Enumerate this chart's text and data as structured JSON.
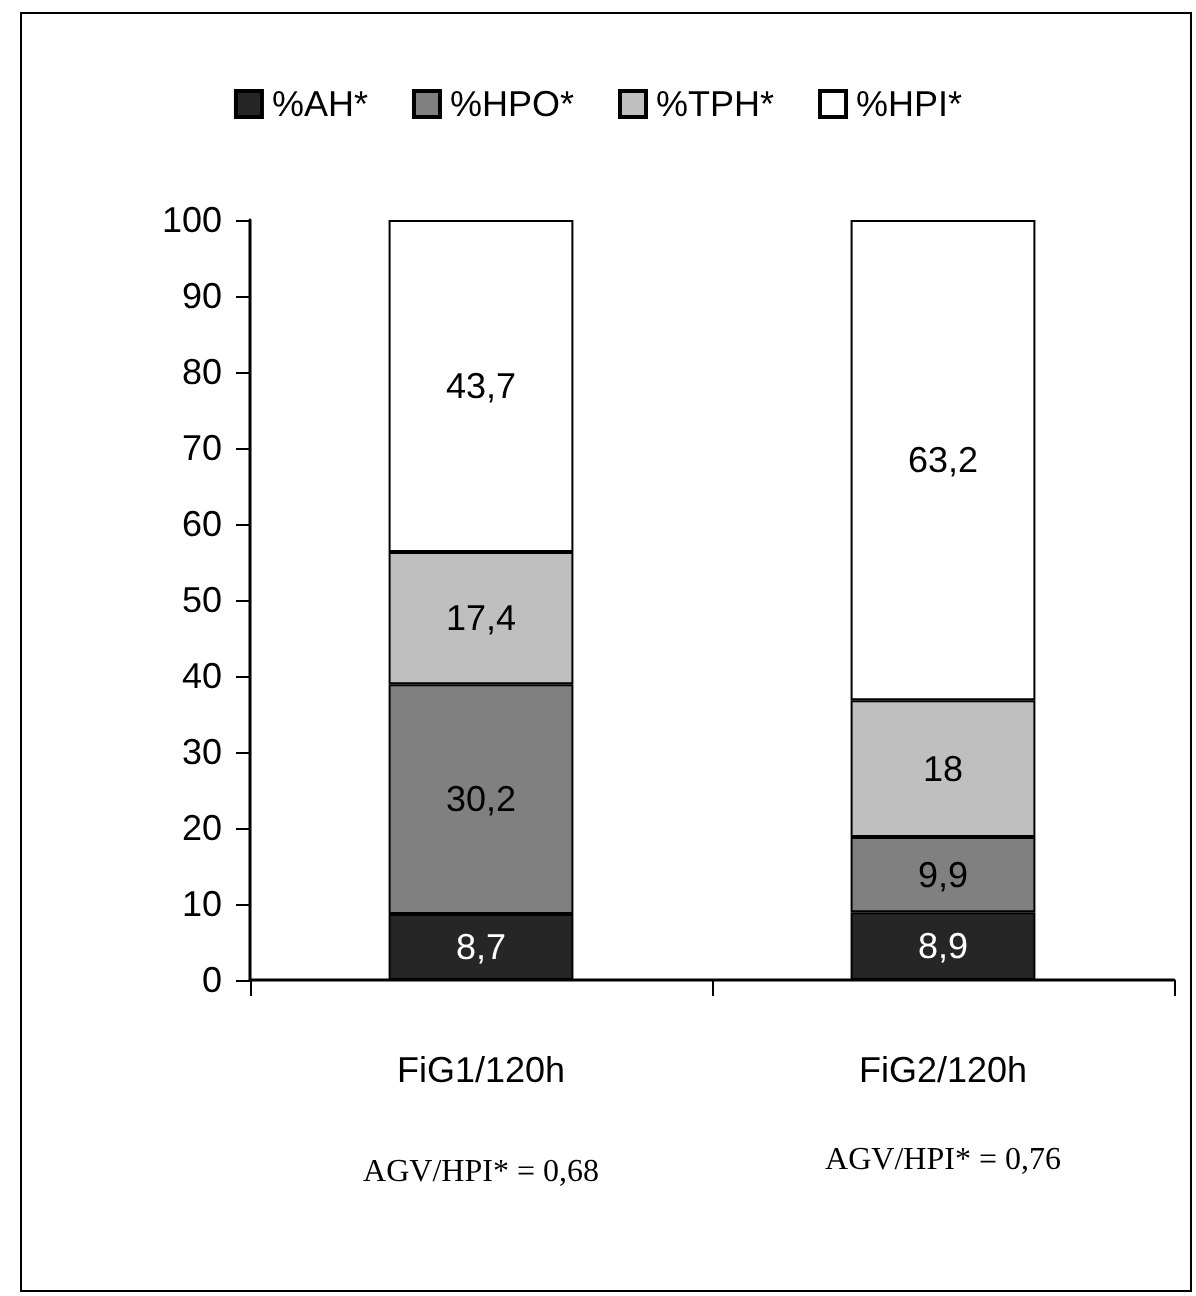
{
  "chart_data": {
    "type": "bar",
    "stacked": true,
    "categories": [
      "FiG1/120h",
      "FiG2/120h"
    ],
    "series": [
      {
        "name": "%AH*",
        "color": "#262626",
        "values": [
          8.7,
          8.9
        ],
        "value_labels": [
          "8,7",
          "8,9"
        ]
      },
      {
        "name": "%HPO*",
        "color": "#808080",
        "values": [
          30.2,
          9.9
        ],
        "value_labels": [
          "30,2",
          "9,9"
        ]
      },
      {
        "name": "%TPH*",
        "color": "#bfbfbf",
        "values": [
          17.4,
          18
        ],
        "value_labels": [
          "17,4",
          "18"
        ]
      },
      {
        "name": "%HPI*",
        "color": "#ffffff",
        "values": [
          43.7,
          63.2
        ],
        "value_labels": [
          "43,7",
          "63,2"
        ]
      }
    ],
    "ylim": [
      0,
      100
    ],
    "yticks": [
      0,
      10,
      20,
      30,
      40,
      50,
      60,
      70,
      80,
      90,
      100
    ],
    "grid": false,
    "legend": "top",
    "annotations": [
      "AGV/HPI* = 0,68",
      "AGV/HPI* = 0,76"
    ]
  }
}
